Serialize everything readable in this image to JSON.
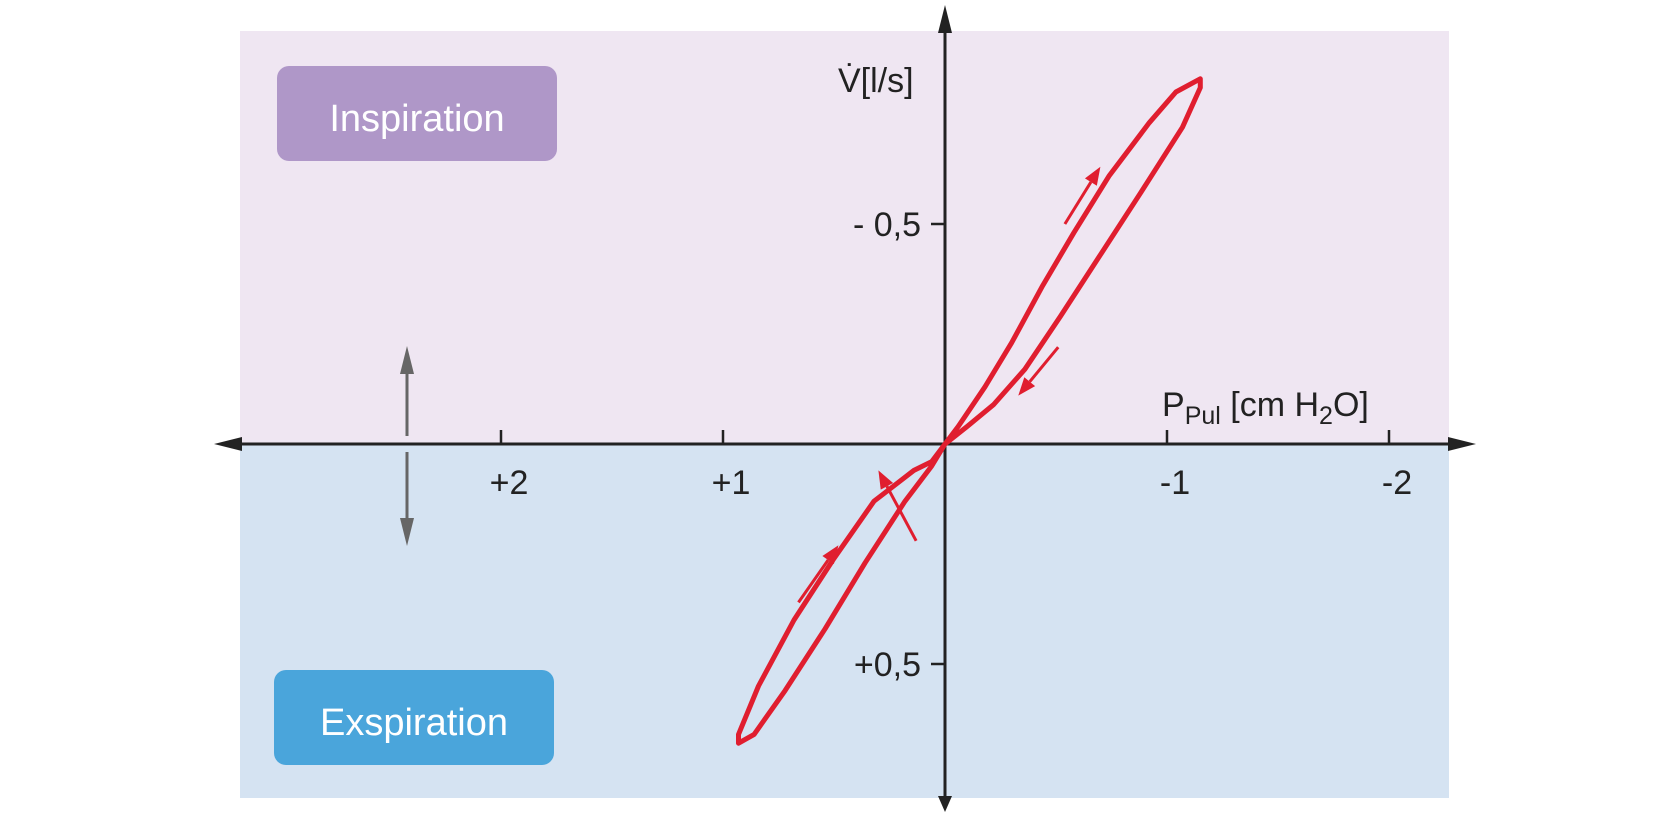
{
  "chart_data": {
    "type": "line",
    "title": "",
    "xlabel": {
      "main": "P",
      "sub": "Pul",
      "unit_pre": " [cm H",
      "unit_sub": "2",
      "unit_post": "O]"
    },
    "ylabel": "V̇[l/s]",
    "x_axis": {
      "reversed": true,
      "ticks": [
        {
          "value": 2,
          "label": "+2"
        },
        {
          "value": 1,
          "label": "+1"
        },
        {
          "value": -1,
          "label": "-1"
        },
        {
          "value": -2,
          "label": "-2"
        }
      ]
    },
    "y_axis": {
      "reversed": true,
      "ticks": [
        {
          "value": -0.5,
          "label": "- 0,5"
        },
        {
          "value": 0.5,
          "label": "+0,5"
        }
      ]
    },
    "regions": [
      {
        "name": "Inspiration",
        "color": "#efe6f2",
        "box_color": "#af97c8"
      },
      {
        "name": "Exspiration",
        "color": "#d5e3f2",
        "box_color": "#4aa5db"
      }
    ],
    "series": [
      {
        "color": "#e01e2f",
        "loop": [
          [
            0,
            0
          ],
          [
            -0.06,
            -0.04
          ],
          [
            -0.18,
            -0.13
          ],
          [
            -0.3,
            -0.23
          ],
          [
            -0.44,
            -0.36
          ],
          [
            -0.58,
            -0.48
          ],
          [
            -0.74,
            -0.61
          ],
          [
            -0.92,
            -0.73
          ],
          [
            -1.04,
            -0.8
          ],
          [
            -1.15,
            -0.83
          ],
          [
            -1.15,
            -0.81
          ],
          [
            -1.07,
            -0.72
          ],
          [
            -0.88,
            -0.57
          ],
          [
            -0.7,
            -0.43
          ],
          [
            -0.52,
            -0.29
          ],
          [
            -0.36,
            -0.17
          ],
          [
            -0.22,
            -0.09
          ],
          [
            -0.1,
            -0.04
          ],
          [
            0,
            0
          ],
          [
            0.06,
            0.05
          ],
          [
            0.18,
            0.13
          ],
          [
            0.36,
            0.27
          ],
          [
            0.54,
            0.42
          ],
          [
            0.72,
            0.56
          ],
          [
            0.86,
            0.66
          ],
          [
            0.93,
            0.68
          ],
          [
            0.93,
            0.66
          ],
          [
            0.84,
            0.55
          ],
          [
            0.68,
            0.4
          ],
          [
            0.5,
            0.26
          ],
          [
            0.32,
            0.13
          ],
          [
            0.14,
            0.06
          ],
          [
            0.06,
            0.04
          ],
          [
            0,
            0
          ]
        ],
        "arrows": [
          {
            "from": [
              -0.54,
              -0.5
            ],
            "to": [
              -0.7,
              -0.63
            ]
          },
          {
            "from": [
              -0.51,
              -0.22
            ],
            "to": [
              -0.33,
              -0.11
            ]
          },
          {
            "from": [
              0.66,
              0.36
            ],
            "to": [
              0.48,
              0.23
            ]
          },
          {
            "from": [
              0.13,
              0.22
            ],
            "to": [
              0.3,
              0.06
            ]
          }
        ]
      }
    ],
    "center_arrow": "double-headed vertical"
  },
  "labels": {
    "inspiration": "Inspiration",
    "exspiration": "Exspiration"
  }
}
